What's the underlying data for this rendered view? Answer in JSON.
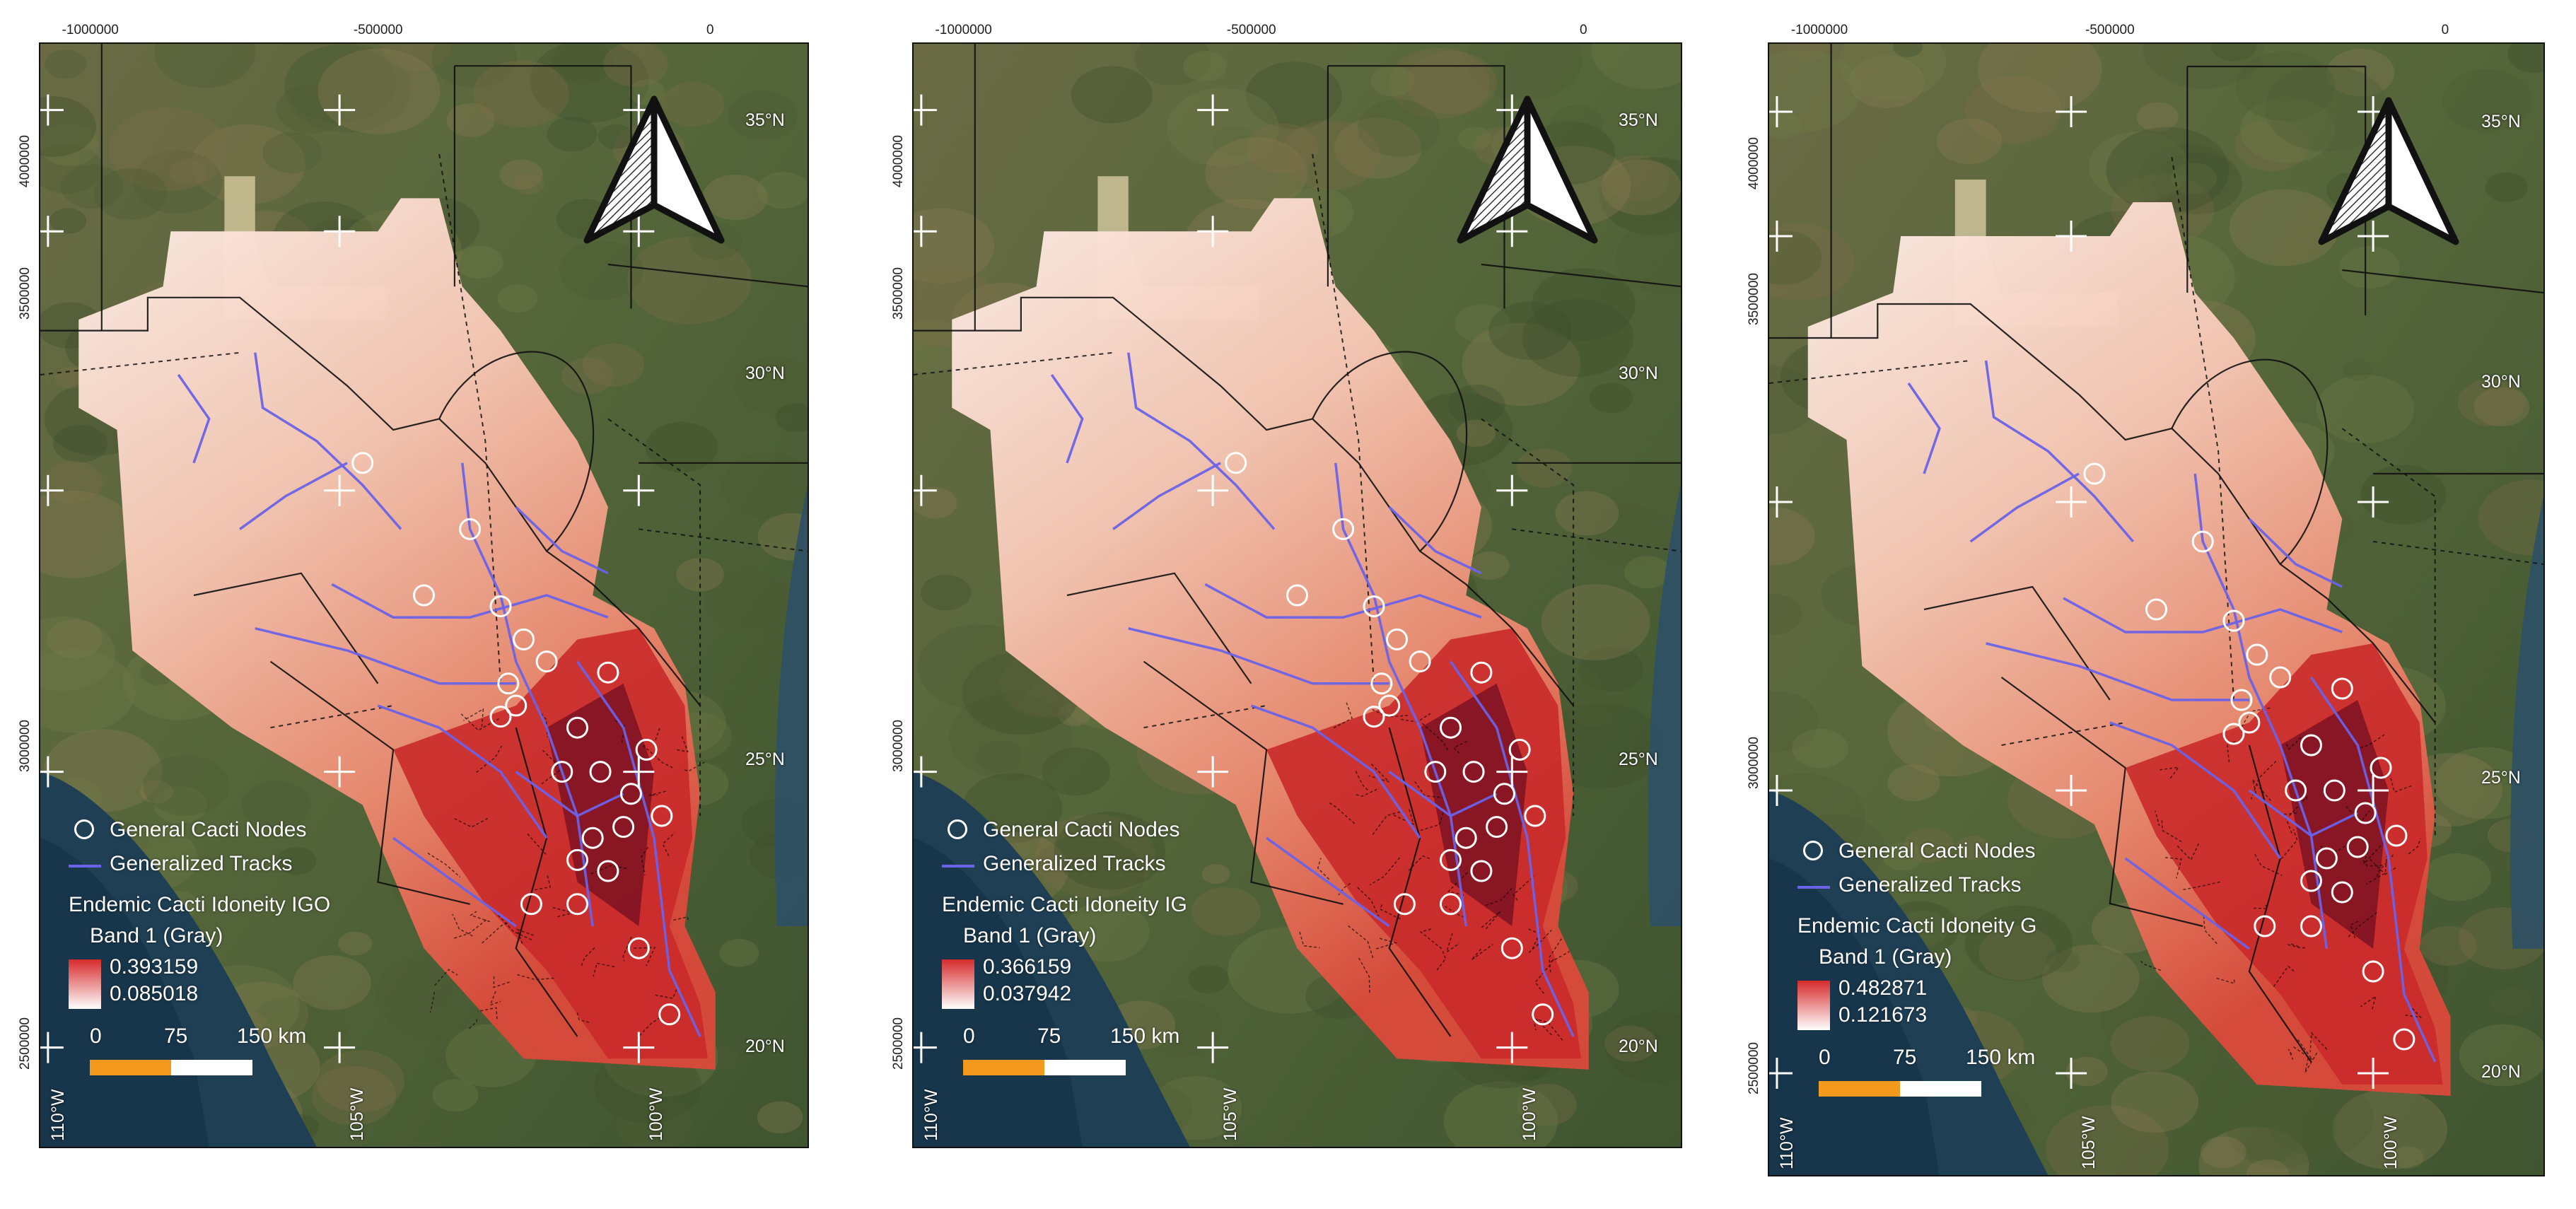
{
  "panels": [
    {
      "id": "igo",
      "top_labels": [
        "-1000000",
        "-500000",
        "0"
      ],
      "left_labels": [
        "4000000",
        "3500000",
        "3000000",
        "2500000"
      ],
      "lat_labels": [
        "35°N",
        "30°N",
        "25°N",
        "20°N"
      ],
      "lon_labels": [
        "110°W",
        "105°W",
        "100°W"
      ],
      "legend": {
        "nodes_label": "General Cacti Nodes",
        "tracks_label": "Generalized Tracks",
        "title": "Endemic Cacti Idoneity IGO",
        "band": "Band 1 (Gray)",
        "max": "0.393159",
        "min": "0.085018"
      },
      "scale": {
        "zero": "0",
        "mid": "75",
        "end": "150 km"
      }
    },
    {
      "id": "ig",
      "top_labels": [
        "-1000000",
        "-500000",
        "0"
      ],
      "left_labels": [
        "4000000",
        "3500000",
        "3000000",
        "2500000"
      ],
      "lat_labels": [
        "35°N",
        "30°N",
        "25°N",
        "20°N"
      ],
      "lon_labels": [
        "110°W",
        "105°W",
        "100°W"
      ],
      "legend": {
        "nodes_label": "General Cacti Nodes",
        "tracks_label": "Generalized Tracks",
        "title": "Endemic Cacti Idoneity IG",
        "band": "Band 1 (Gray)",
        "max": "0.366159",
        "min": "0.037942"
      },
      "scale": {
        "zero": "0",
        "mid": "75",
        "end": "150 km"
      }
    },
    {
      "id": "g",
      "top_labels": [
        "-1000000",
        "-500000",
        "0"
      ],
      "left_labels": [
        "4000000",
        "3500000",
        "3000000",
        "2500000"
      ],
      "lat_labels": [
        "35°N",
        "30°N",
        "25°N",
        "20°N"
      ],
      "lon_labels": [
        "110°W",
        "105°W",
        "100°W"
      ],
      "legend": {
        "nodes_label": "General Cacti Nodes",
        "tracks_label": "Generalized Tracks",
        "title": "Endemic Cacti Idoneity G",
        "band": "Band 1 (Gray)",
        "max": "0.482871",
        "min": "0.121673"
      },
      "scale": {
        "zero": "0",
        "mid": "75",
        "end": "150 km"
      }
    }
  ],
  "colors": {
    "ramp_high": "#d62a2a",
    "ramp_low": "#ffffff",
    "track": "#6a62e8",
    "node": "#ffffff",
    "scale_orange": "#f39a1e"
  },
  "icons": [
    "north-arrow-icon",
    "graticule-cross-icon",
    "node-circle-icon"
  ]
}
